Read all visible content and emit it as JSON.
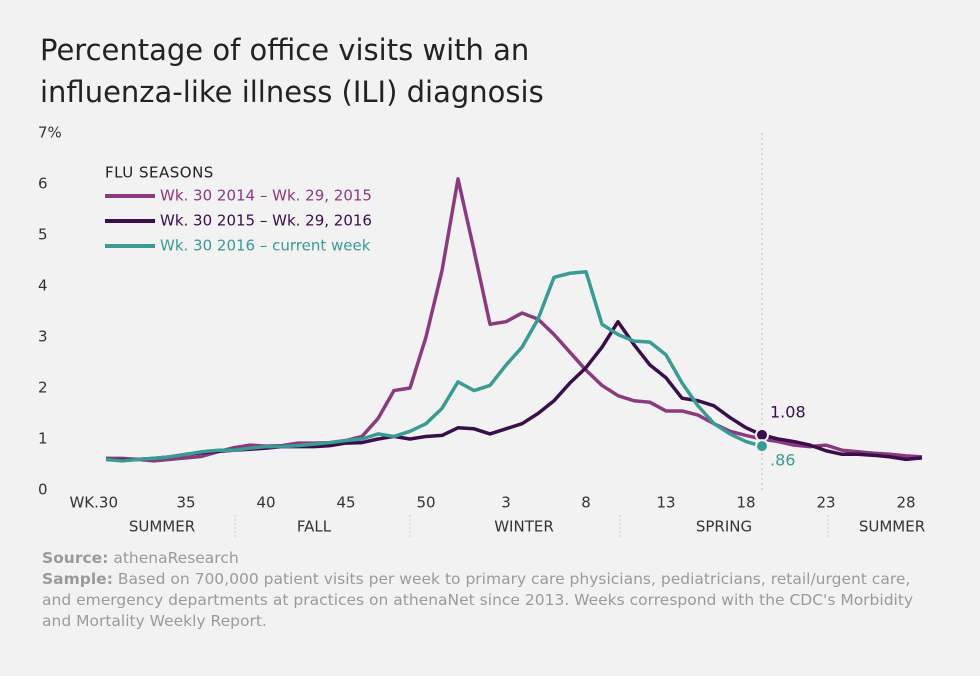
{
  "chart_data": {
    "type": "line",
    "title": [
      "Percentage of office visits with an",
      "influenza-like illness (ILI) diagnosis"
    ],
    "legend_title": "FLU SEASONS",
    "categories": [
      "WK.30",
      null,
      null,
      null,
      null,
      "35",
      null,
      null,
      null,
      null,
      "40",
      null,
      null,
      null,
      null,
      "45",
      null,
      null,
      null,
      null,
      "50",
      null,
      null,
      null,
      null,
      "3",
      null,
      null,
      null,
      null,
      "8",
      null,
      null,
      null,
      null,
      "13",
      null,
      null,
      null,
      null,
      "18",
      null,
      null,
      null,
      null,
      "23",
      null,
      null,
      null,
      null,
      "28",
      null
    ],
    "seasons": [
      "SUMMER",
      "FALL",
      "WINTER",
      "SPRING",
      "SUMMER"
    ],
    "ylim": [
      0,
      7
    ],
    "yticks": [
      0,
      1,
      2,
      3,
      4,
      5,
      6,
      {
        "value": 7,
        "label": "7%"
      }
    ],
    "grid": false,
    "series": [
      {
        "name": "Wk. 30 2014 – Wk. 29, 2015",
        "color": "#8b3a7e",
        "values": [
          0.62,
          0.62,
          0.6,
          0.57,
          0.6,
          0.63,
          0.66,
          0.75,
          0.83,
          0.88,
          0.86,
          0.87,
          0.92,
          0.92,
          0.93,
          0.97,
          1.05,
          1.4,
          1.95,
          2.0,
          3.0,
          4.3,
          6.1,
          4.7,
          3.25,
          3.3,
          3.47,
          3.35,
          3.05,
          2.7,
          2.35,
          2.05,
          1.85,
          1.75,
          1.72,
          1.55,
          1.55,
          1.47,
          1.3,
          1.15,
          1.07,
          1.0,
          0.95,
          0.88,
          0.85,
          0.88,
          0.78,
          0.75,
          0.72,
          0.7,
          0.67,
          0.65
        ]
      },
      {
        "name": "Wk. 30 2015 – Wk. 29, 2016",
        "color": "#3a0e4a",
        "values": [
          0.6,
          0.58,
          0.6,
          0.62,
          0.65,
          0.7,
          0.73,
          0.76,
          0.78,
          0.8,
          0.82,
          0.85,
          0.85,
          0.85,
          0.87,
          0.92,
          0.93,
          1.0,
          1.05,
          1.0,
          1.05,
          1.07,
          1.22,
          1.2,
          1.1,
          1.2,
          1.3,
          1.5,
          1.75,
          2.1,
          2.4,
          2.8,
          3.3,
          2.85,
          2.45,
          2.2,
          1.8,
          1.75,
          1.65,
          1.42,
          1.22,
          1.08,
          1.0,
          0.95,
          0.88,
          0.77,
          0.7,
          0.7,
          0.68,
          0.65,
          0.6,
          0.63
        ],
        "value_labels": [
          null,
          null,
          null,
          null,
          null,
          null,
          null,
          null,
          null,
          null,
          null,
          null,
          null,
          null,
          null,
          null,
          null,
          null,
          null,
          null,
          null,
          null,
          null,
          null,
          null,
          null,
          null,
          null,
          null,
          null,
          null,
          null,
          null,
          null,
          null,
          null,
          null,
          null,
          null,
          null,
          null,
          "1.08",
          null,
          null,
          null,
          null,
          null,
          null,
          null,
          null,
          null,
          null
        ]
      },
      {
        "name": "Wk. 30 2016 – current week",
        "color": "#3a9a94",
        "values": [
          0.6,
          0.57,
          0.6,
          0.62,
          0.65,
          0.7,
          0.75,
          0.78,
          0.78,
          0.82,
          0.85,
          0.85,
          0.87,
          0.9,
          0.93,
          0.97,
          1.0,
          1.1,
          1.05,
          1.15,
          1.3,
          1.6,
          2.12,
          1.95,
          2.05,
          2.45,
          2.8,
          3.35,
          4.17,
          4.25,
          4.28,
          3.25,
          3.05,
          2.92,
          2.9,
          2.65,
          2.1,
          1.65,
          1.3,
          1.1,
          0.95,
          0.86,
          null,
          null,
          null,
          null,
          null,
          null,
          null,
          null,
          null,
          null
        ],
        "value_labels": [
          null,
          null,
          null,
          null,
          null,
          null,
          null,
          null,
          null,
          null,
          null,
          null,
          null,
          null,
          null,
          null,
          null,
          null,
          null,
          null,
          null,
          null,
          null,
          null,
          null,
          null,
          null,
          null,
          null,
          null,
          null,
          null,
          null,
          null,
          null,
          null,
          null,
          null,
          null,
          null,
          null,
          ".86",
          null,
          null,
          null,
          null,
          null,
          null,
          null,
          null,
          null,
          null
        ]
      }
    ]
  },
  "notes": [
    {
      "label": "Source:",
      "text": "athenaResearch"
    },
    {
      "label": "Sample:",
      "text": "Based on 700,000 patient visits per week to primary care physicians, pediatricians, retail/urgent care, and emergency departments at practices on athenaNet since 2013. Weeks correspond with the CDC's Morbidity and Mortality Weekly Report."
    }
  ]
}
